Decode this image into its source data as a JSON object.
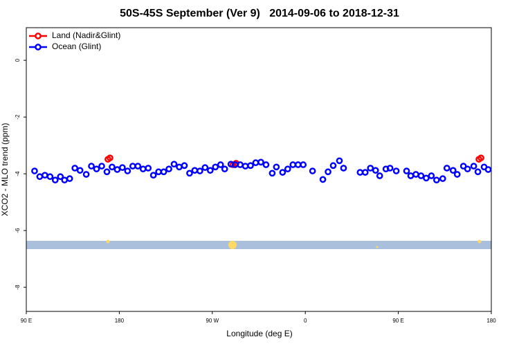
{
  "chart_data": {
    "type": "scatter",
    "title": "50S-45S September (Ver 9)   2014-09-06 to 2018-12-31",
    "x_label": "Longitude (deg E)",
    "y_label": "XCO2 - MLO trend (ppm)",
    "xlim": [
      90,
      540
    ],
    "ylim": [
      -8.85,
      1.15
    ],
    "xticks": [
      {
        "value": 90,
        "label": "90 E"
      },
      180,
      {
        "value": 270,
        "label": "90 W"
      },
      {
        "value": 360,
        "label": "0"
      },
      {
        "value": 450,
        "label": "90 E"
      },
      {
        "value": 540,
        "label": "180"
      }
    ],
    "yticks": [
      0,
      -2,
      -4,
      -6,
      -8
    ],
    "legend": "top-left",
    "series": [
      {
        "name": "Land (Nadir&Glint)",
        "color": "#ff0000",
        "x": [
          169,
          171,
          290,
          293,
          528,
          530
        ],
        "values": [
          -3.49,
          -3.44,
          -3.68,
          -3.63,
          -3.49,
          -3.44
        ]
      },
      {
        "name": "Ocean (Glint)",
        "color": "#0000ff",
        "x": [
          98,
          103,
          108,
          113,
          118,
          123,
          127,
          132,
          137,
          142,
          148,
          153,
          158,
          163,
          168,
          173,
          178,
          183,
          188,
          193,
          198,
          203,
          208,
          213,
          218,
          223,
          228,
          233,
          238,
          243,
          248,
          253,
          258,
          263,
          268,
          273,
          278,
          282,
          288,
          292,
          297,
          302,
          307,
          312,
          317,
          322,
          328,
          332,
          338,
          343,
          348,
          353,
          358,
          367,
          377,
          382,
          387,
          393,
          397,
          413,
          418,
          423,
          428,
          432,
          438,
          442,
          448,
          458,
          462,
          467,
          472,
          477,
          482,
          487,
          493,
          497,
          503,
          507,
          513,
          517,
          523,
          527,
          533,
          537
        ],
        "values": [
          -3.9,
          -4.1,
          -4.05,
          -4.1,
          -4.22,
          -4.1,
          -4.22,
          -4.17,
          -3.8,
          -3.88,
          -4.02,
          -3.73,
          -3.83,
          -3.73,
          -3.93,
          -3.76,
          -3.85,
          -3.78,
          -3.9,
          -3.73,
          -3.73,
          -3.83,
          -3.8,
          -4.05,
          -3.93,
          -3.93,
          -3.83,
          -3.66,
          -3.76,
          -3.71,
          -3.98,
          -3.88,
          -3.9,
          -3.78,
          -3.88,
          -3.76,
          -3.68,
          -3.83,
          -3.66,
          -3.68,
          -3.68,
          -3.73,
          -3.71,
          -3.61,
          -3.59,
          -3.68,
          -3.98,
          -3.76,
          -3.95,
          -3.83,
          -3.68,
          -3.68,
          -3.68,
          -3.9,
          -4.2,
          -3.93,
          -3.71,
          -3.54,
          -3.8,
          -3.95,
          -3.95,
          -3.8,
          -3.88,
          -4.07,
          -3.83,
          -3.8,
          -3.9,
          -3.9,
          -4.07,
          -4.02,
          -4.07,
          -4.15,
          -4.07,
          -4.22,
          -4.17,
          -3.8,
          -3.88,
          -4.02,
          -3.73,
          -3.83,
          -3.73,
          -3.93,
          -3.76,
          -3.85
        ]
      }
    ]
  }
}
